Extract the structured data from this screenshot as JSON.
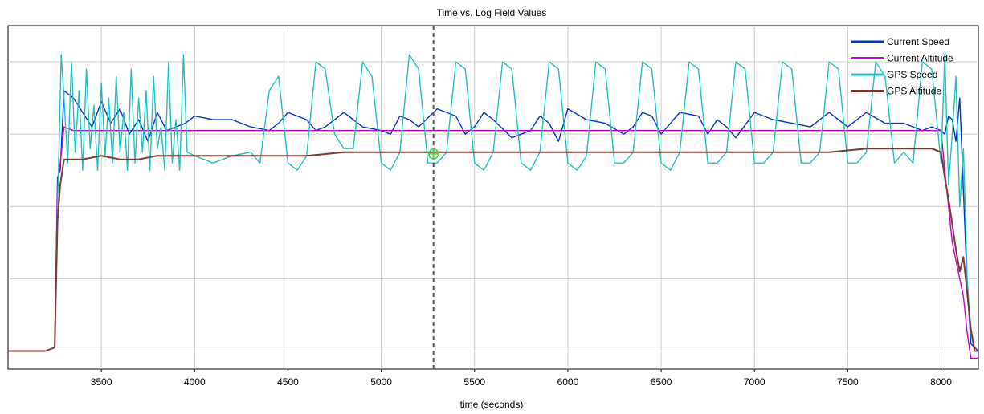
{
  "chart_data": {
    "type": "line",
    "title": "Time vs. Log Field Values",
    "xlabel": "time (seconds)",
    "ylabel": "",
    "xlim": [
      3000,
      8200
    ],
    "ylim": [
      -5,
      90
    ],
    "x_ticks": [
      3500,
      4000,
      4500,
      5000,
      5500,
      6000,
      6500,
      7000,
      7500,
      8000
    ],
    "x_tick_labels": [
      "3500",
      "4000",
      "4500",
      "5000",
      "5500",
      "6000",
      "6500",
      "7000",
      "7500",
      "8000"
    ],
    "y_gridlines": [
      0,
      20,
      40,
      60,
      80
    ],
    "grid": true,
    "legend_position": "top-right",
    "cursor_x": 5280,
    "cursor_marker_y": 54.5,
    "series": [
      {
        "name": "Current Speed",
        "color": "#0033cc",
        "x": [
          3000,
          3200,
          3250,
          3265,
          3280,
          3300,
          3350,
          3400,
          3450,
          3500,
          3550,
          3600,
          3650,
          3700,
          3750,
          3800,
          3850,
          3900,
          3950,
          4000,
          4100,
          4200,
          4300,
          4400,
          4450,
          4500,
          4550,
          4600,
          4650,
          4700,
          4800,
          4900,
          5000,
          5050,
          5100,
          5150,
          5200,
          5300,
          5400,
          5450,
          5500,
          5550,
          5600,
          5700,
          5800,
          5850,
          5900,
          5950,
          6000,
          6100,
          6200,
          6300,
          6350,
          6400,
          6450,
          6500,
          6600,
          6700,
          6750,
          6800,
          6850,
          6900,
          7000,
          7100,
          7200,
          7300,
          7400,
          7500,
          7600,
          7700,
          7800,
          7900,
          7950,
          8000,
          8020,
          8040,
          8060,
          8080,
          8100,
          8120,
          8140,
          8160,
          8200
        ],
        "y": [
          0,
          0,
          1,
          48,
          50,
          72,
          70,
          66,
          62,
          69,
          63,
          67,
          60,
          64,
          58,
          66,
          61,
          62,
          63,
          65,
          64,
          64,
          62,
          61,
          63,
          66,
          65,
          64,
          61,
          62,
          66,
          62,
          61,
          60,
          65,
          64,
          62,
          67,
          65,
          60,
          62,
          66,
          64,
          59,
          61,
          65,
          63,
          58,
          67,
          64,
          63,
          60,
          62,
          66,
          65,
          60,
          66,
          65,
          60,
          64,
          62,
          59,
          66,
          64,
          63,
          62,
          66,
          62,
          66,
          63,
          63,
          61,
          62,
          61,
          60,
          65,
          64,
          58,
          70,
          44,
          18,
          2,
          0
        ]
      },
      {
        "name": "Current Altitude",
        "color": "#cc00cc",
        "x": [
          3000,
          3200,
          3250,
          3265,
          3280,
          3300,
          3350,
          3400,
          3500,
          3600,
          3700,
          3800,
          3900,
          4000,
          4200,
          4400,
          4600,
          4800,
          5000,
          5200,
          5400,
          5600,
          5800,
          6000,
          6200,
          6400,
          6600,
          6800,
          7000,
          7200,
          7400,
          7600,
          7800,
          7950,
          8000,
          8020,
          8040,
          8060,
          8080,
          8100,
          8120,
          8140,
          8160,
          8200
        ],
        "y": [
          0,
          0,
          1,
          45,
          52,
          62,
          61,
          61,
          61,
          61,
          61,
          61,
          61,
          61,
          61,
          61,
          61,
          61,
          61,
          61,
          61,
          61,
          61,
          61,
          61,
          61,
          61,
          61,
          61,
          61,
          61,
          61,
          61,
          61,
          61,
          50,
          40,
          30,
          25,
          20,
          15,
          5,
          -2,
          -2
        ]
      },
      {
        "name": "GPS Speed",
        "color": "#20c0c0",
        "x": [
          3000,
          3200,
          3250,
          3265,
          3275,
          3285,
          3300,
          3320,
          3340,
          3360,
          3380,
          3400,
          3420,
          3440,
          3460,
          3480,
          3500,
          3520,
          3540,
          3560,
          3580,
          3600,
          3620,
          3640,
          3660,
          3680,
          3700,
          3720,
          3740,
          3760,
          3780,
          3800,
          3820,
          3840,
          3860,
          3880,
          3900,
          3920,
          3940,
          3960,
          4000,
          4100,
          4200,
          4300,
          4350,
          4400,
          4450,
          4500,
          4550,
          4600,
          4650,
          4700,
          4750,
          4800,
          4850,
          4900,
          4950,
          5000,
          5050,
          5100,
          5150,
          5200,
          5250,
          5300,
          5350,
          5400,
          5450,
          5500,
          5550,
          5600,
          5650,
          5700,
          5750,
          5800,
          5850,
          5900,
          5950,
          6000,
          6050,
          6100,
          6150,
          6200,
          6250,
          6300,
          6350,
          6400,
          6450,
          6500,
          6550,
          6600,
          6650,
          6700,
          6750,
          6800,
          6850,
          6900,
          6950,
          7000,
          7050,
          7100,
          7150,
          7200,
          7250,
          7300,
          7350,
          7400,
          7450,
          7500,
          7550,
          7600,
          7650,
          7700,
          7750,
          7800,
          7850,
          7900,
          7950,
          8000,
          8020,
          8040,
          8060,
          8080,
          8100,
          8120,
          8140,
          8160,
          8180,
          8200
        ],
        "y": [
          0,
          0,
          1,
          40,
          60,
          82,
          70,
          52,
          80,
          55,
          72,
          50,
          78,
          56,
          68,
          50,
          74,
          54,
          70,
          52,
          76,
          55,
          66,
          50,
          78,
          52,
          70,
          55,
          72,
          50,
          76,
          56,
          62,
          50,
          80,
          52,
          64,
          50,
          82,
          55,
          54,
          52,
          54,
          55,
          52,
          72,
          76,
          52,
          50,
          54,
          80,
          78,
          60,
          56,
          56,
          80,
          76,
          52,
          50,
          55,
          82,
          78,
          52,
          52,
          55,
          80,
          78,
          52,
          50,
          55,
          80,
          78,
          52,
          50,
          55,
          80,
          78,
          52,
          50,
          54,
          80,
          78,
          52,
          52,
          55,
          80,
          78,
          52,
          50,
          55,
          80,
          78,
          52,
          52,
          55,
          80,
          78,
          52,
          52,
          55,
          80,
          78,
          52,
          52,
          55,
          80,
          78,
          52,
          52,
          55,
          80,
          76,
          52,
          55,
          52,
          80,
          78,
          52,
          82,
          46,
          60,
          76,
          40,
          56,
          20,
          5,
          0,
          0
        ]
      },
      {
        "name": "GPS Altitude",
        "color": "#7a3a30",
        "x": [
          3000,
          3200,
          3250,
          3265,
          3280,
          3300,
          3350,
          3400,
          3500,
          3600,
          3700,
          3800,
          3900,
          4000,
          4200,
          4400,
          4600,
          4800,
          5000,
          5200,
          5400,
          5600,
          5800,
          6000,
          6200,
          6400,
          6600,
          6800,
          7000,
          7200,
          7400,
          7600,
          7800,
          7950,
          8000,
          8020,
          8040,
          8060,
          8080,
          8100,
          8120,
          8140,
          8160,
          8180,
          8200
        ],
        "y": [
          0,
          0,
          1,
          36,
          46,
          53,
          53,
          53,
          54,
          53,
          53,
          54,
          54,
          54,
          54,
          54,
          54,
          55,
          55,
          55,
          55,
          55,
          55,
          55,
          55,
          55,
          55,
          55,
          55,
          55,
          55,
          56,
          56,
          56,
          55,
          48,
          42,
          35,
          28,
          22,
          26,
          16,
          6,
          0,
          0
        ]
      }
    ]
  }
}
